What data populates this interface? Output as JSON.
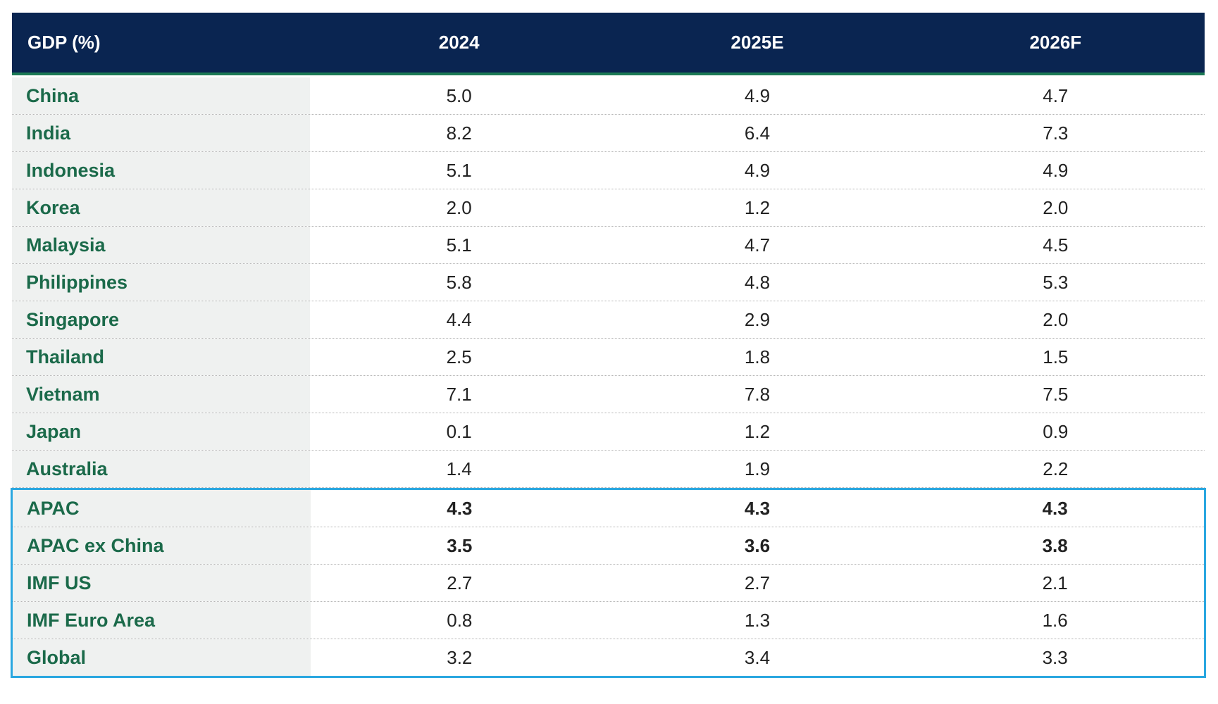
{
  "table": {
    "header": [
      "GDP (%)",
      "2024",
      "2025E",
      "2026F"
    ],
    "rows": [
      [
        "China",
        "5.0",
        "4.9",
        "4.7"
      ],
      [
        "India",
        "8.2",
        "6.4",
        "7.3"
      ],
      [
        "Indonesia",
        "5.1",
        "4.9",
        "4.9"
      ],
      [
        "Korea",
        "2.0",
        "1.2",
        "2.0"
      ],
      [
        "Malaysia",
        "5.1",
        "4.7",
        "4.5"
      ],
      [
        "Philippines",
        "5.8",
        "4.8",
        "5.3"
      ],
      [
        "Singapore",
        "4.4",
        "2.9",
        "2.0"
      ],
      [
        "Thailand",
        "2.5",
        "1.8",
        "1.5"
      ],
      [
        "Vietnam",
        "7.1",
        "7.8",
        "7.5"
      ],
      [
        "Japan",
        "0.1",
        "1.2",
        "0.9"
      ],
      [
        "Australia",
        "1.4",
        "1.9",
        "2.2"
      ]
    ],
    "highlighted_rows": [
      [
        "APAC",
        "4.3",
        "4.3",
        "4.3"
      ],
      [
        "APAC ex China",
        "3.5",
        "3.6",
        "3.8"
      ],
      [
        "IMF US",
        "2.7",
        "2.7",
        "2.1"
      ],
      [
        "IMF Euro Area",
        "0.8",
        "1.3",
        "1.6"
      ],
      [
        "Global",
        "3.2",
        "3.4",
        "3.3"
      ]
    ]
  }
}
